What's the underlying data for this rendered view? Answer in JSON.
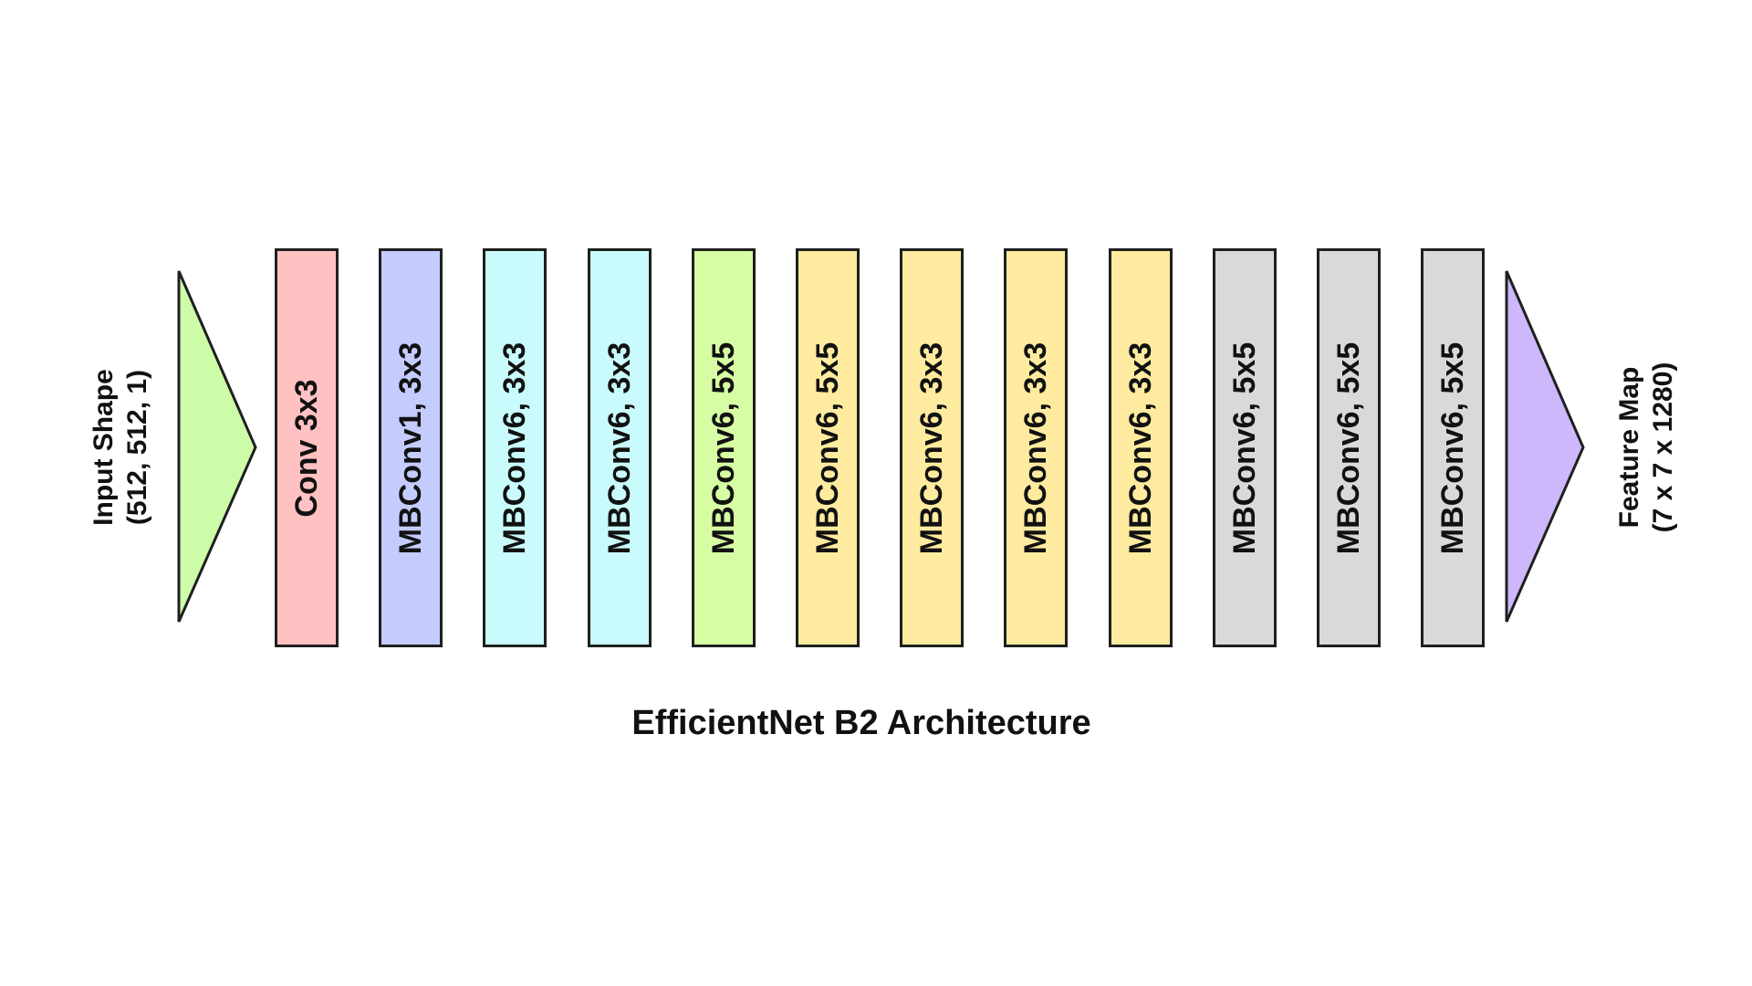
{
  "input": {
    "label_line1": "Input Shape",
    "label_line2": "(512, 512, 1)",
    "arrow_color": "#ccfca8"
  },
  "output": {
    "label_line1": "Feature Map",
    "label_line2": "(7 x 7 x 1280)",
    "arrow_color": "#ccb8fb"
  },
  "blocks": [
    {
      "label": "Conv 3x3",
      "color": "#ffc1c1"
    },
    {
      "label": "MBConv1, 3x3",
      "color": "#c4ccfd"
    },
    {
      "label": "MBConv6, 3x3",
      "color": "#c9fbfc"
    },
    {
      "label": "MBConv6, 3x3",
      "color": "#c9fbfc"
    },
    {
      "label": "MBConv6, 5x5",
      "color": "#d7fda4"
    },
    {
      "label": "MBConv6, 5x5",
      "color": "#feeb9f"
    },
    {
      "label": "MBConv6, 3x3",
      "color": "#feeb9f"
    },
    {
      "label": "MBConv6, 3x3",
      "color": "#feeb9f"
    },
    {
      "label": "MBConv6, 3x3",
      "color": "#feeb9f"
    },
    {
      "label": "MBConv6, 5x5",
      "color": "#d9d9d9"
    },
    {
      "label": "MBConv6, 5x5",
      "color": "#d9d9d9"
    },
    {
      "label": "MBConv6, 5x5",
      "color": "#d9d9d9"
    }
  ],
  "caption": "EfficientNet B2 Architecture",
  "stroke_color": "#1f1f1f"
}
